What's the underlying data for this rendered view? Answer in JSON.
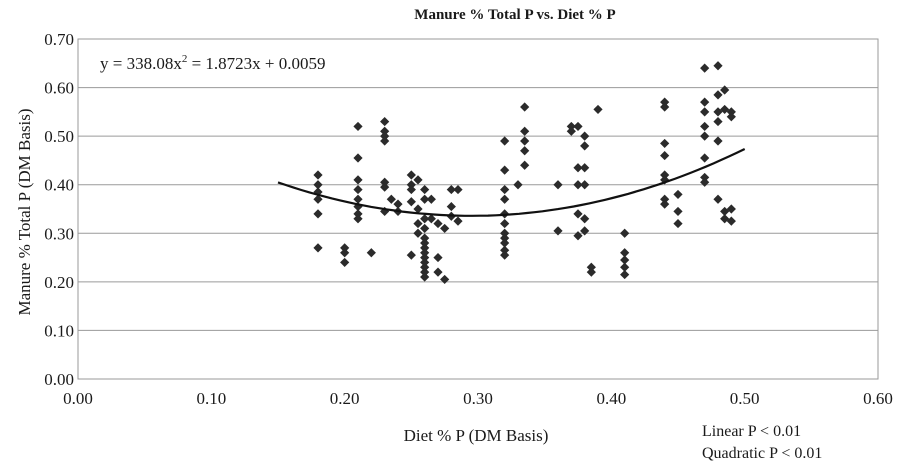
{
  "chart_data": {
    "type": "scatter",
    "title": "Manure % Total P vs. Diet % P",
    "xlabel": "Diet % P (DM Basis)",
    "ylabel": "Manure % Total P (DM Basis)",
    "xlim": [
      0,
      0.6
    ],
    "ylim": [
      0,
      0.7
    ],
    "x_ticks": [
      "0.00",
      "0.10",
      "0.20",
      "0.30",
      "0.40",
      "0.50",
      "0.60"
    ],
    "y_ticks": [
      "0.00",
      "0.10",
      "0.20",
      "0.30",
      "0.40",
      "0.50",
      "0.60",
      "0.70"
    ],
    "grid": "horizontal",
    "marker_color": "#2b2b2b",
    "equation": {
      "pre": "y = 338.08x",
      "sup": "2",
      "post": " = 1.8723x + 0.0059"
    },
    "stats": [
      "Linear P < 0.01",
      "Quadratic P < 0.01"
    ],
    "trendline": {
      "type": "polynomial",
      "x_range": [
        0.15,
        0.5
      ],
      "x_min": 0.295,
      "y_min": 0.336,
      "y_at_start": 0.39,
      "y_at_end": 0.503
    },
    "points": [
      [
        0.18,
        0.42
      ],
      [
        0.18,
        0.4
      ],
      [
        0.18,
        0.385
      ],
      [
        0.18,
        0.37
      ],
      [
        0.18,
        0.34
      ],
      [
        0.18,
        0.27
      ],
      [
        0.2,
        0.27
      ],
      [
        0.2,
        0.26
      ],
      [
        0.2,
        0.24
      ],
      [
        0.21,
        0.52
      ],
      [
        0.21,
        0.455
      ],
      [
        0.21,
        0.41
      ],
      [
        0.21,
        0.39
      ],
      [
        0.21,
        0.37
      ],
      [
        0.21,
        0.355
      ],
      [
        0.21,
        0.34
      ],
      [
        0.21,
        0.33
      ],
      [
        0.22,
        0.26
      ],
      [
        0.23,
        0.53
      ],
      [
        0.23,
        0.51
      ],
      [
        0.23,
        0.5
      ],
      [
        0.23,
        0.49
      ],
      [
        0.23,
        0.405
      ],
      [
        0.23,
        0.395
      ],
      [
        0.23,
        0.345
      ],
      [
        0.235,
        0.37
      ],
      [
        0.24,
        0.36
      ],
      [
        0.24,
        0.345
      ],
      [
        0.25,
        0.42
      ],
      [
        0.25,
        0.4
      ],
      [
        0.25,
        0.39
      ],
      [
        0.25,
        0.365
      ],
      [
        0.25,
        0.255
      ],
      [
        0.255,
        0.41
      ],
      [
        0.255,
        0.35
      ],
      [
        0.255,
        0.32
      ],
      [
        0.255,
        0.3
      ],
      [
        0.26,
        0.39
      ],
      [
        0.26,
        0.37
      ],
      [
        0.26,
        0.33
      ],
      [
        0.26,
        0.31
      ],
      [
        0.26,
        0.29
      ],
      [
        0.26,
        0.28
      ],
      [
        0.26,
        0.27
      ],
      [
        0.26,
        0.26
      ],
      [
        0.26,
        0.25
      ],
      [
        0.26,
        0.24
      ],
      [
        0.26,
        0.23
      ],
      [
        0.26,
        0.22
      ],
      [
        0.26,
        0.21
      ],
      [
        0.265,
        0.37
      ],
      [
        0.265,
        0.33
      ],
      [
        0.27,
        0.32
      ],
      [
        0.27,
        0.25
      ],
      [
        0.27,
        0.22
      ],
      [
        0.275,
        0.31
      ],
      [
        0.275,
        0.205
      ],
      [
        0.28,
        0.39
      ],
      [
        0.28,
        0.355
      ],
      [
        0.28,
        0.335
      ],
      [
        0.285,
        0.39
      ],
      [
        0.285,
        0.325
      ],
      [
        0.32,
        0.49
      ],
      [
        0.32,
        0.43
      ],
      [
        0.32,
        0.39
      ],
      [
        0.32,
        0.37
      ],
      [
        0.32,
        0.34
      ],
      [
        0.32,
        0.32
      ],
      [
        0.32,
        0.3
      ],
      [
        0.32,
        0.29
      ],
      [
        0.32,
        0.28
      ],
      [
        0.32,
        0.265
      ],
      [
        0.32,
        0.255
      ],
      [
        0.33,
        0.4
      ],
      [
        0.335,
        0.56
      ],
      [
        0.335,
        0.51
      ],
      [
        0.335,
        0.49
      ],
      [
        0.335,
        0.47
      ],
      [
        0.335,
        0.44
      ],
      [
        0.36,
        0.4
      ],
      [
        0.36,
        0.305
      ],
      [
        0.37,
        0.52
      ],
      [
        0.37,
        0.51
      ],
      [
        0.375,
        0.52
      ],
      [
        0.375,
        0.435
      ],
      [
        0.375,
        0.4
      ],
      [
        0.375,
        0.34
      ],
      [
        0.375,
        0.295
      ],
      [
        0.38,
        0.5
      ],
      [
        0.38,
        0.48
      ],
      [
        0.38,
        0.435
      ],
      [
        0.38,
        0.4
      ],
      [
        0.38,
        0.33
      ],
      [
        0.38,
        0.305
      ],
      [
        0.385,
        0.22
      ],
      [
        0.385,
        0.23
      ],
      [
        0.39,
        0.555
      ],
      [
        0.41,
        0.3
      ],
      [
        0.41,
        0.26
      ],
      [
        0.41,
        0.245
      ],
      [
        0.41,
        0.23
      ],
      [
        0.41,
        0.215
      ],
      [
        0.44,
        0.57
      ],
      [
        0.44,
        0.56
      ],
      [
        0.44,
        0.485
      ],
      [
        0.44,
        0.46
      ],
      [
        0.44,
        0.42
      ],
      [
        0.44,
        0.41
      ],
      [
        0.44,
        0.37
      ],
      [
        0.44,
        0.36
      ],
      [
        0.45,
        0.38
      ],
      [
        0.45,
        0.345
      ],
      [
        0.45,
        0.32
      ],
      [
        0.47,
        0.64
      ],
      [
        0.47,
        0.57
      ],
      [
        0.47,
        0.55
      ],
      [
        0.47,
        0.52
      ],
      [
        0.47,
        0.5
      ],
      [
        0.47,
        0.455
      ],
      [
        0.47,
        0.415
      ],
      [
        0.47,
        0.405
      ],
      [
        0.48,
        0.645
      ],
      [
        0.48,
        0.585
      ],
      [
        0.48,
        0.55
      ],
      [
        0.48,
        0.53
      ],
      [
        0.48,
        0.49
      ],
      [
        0.48,
        0.37
      ],
      [
        0.485,
        0.595
      ],
      [
        0.485,
        0.555
      ],
      [
        0.485,
        0.345
      ],
      [
        0.485,
        0.33
      ],
      [
        0.49,
        0.55
      ],
      [
        0.49,
        0.54
      ],
      [
        0.49,
        0.35
      ],
      [
        0.49,
        0.325
      ]
    ]
  }
}
